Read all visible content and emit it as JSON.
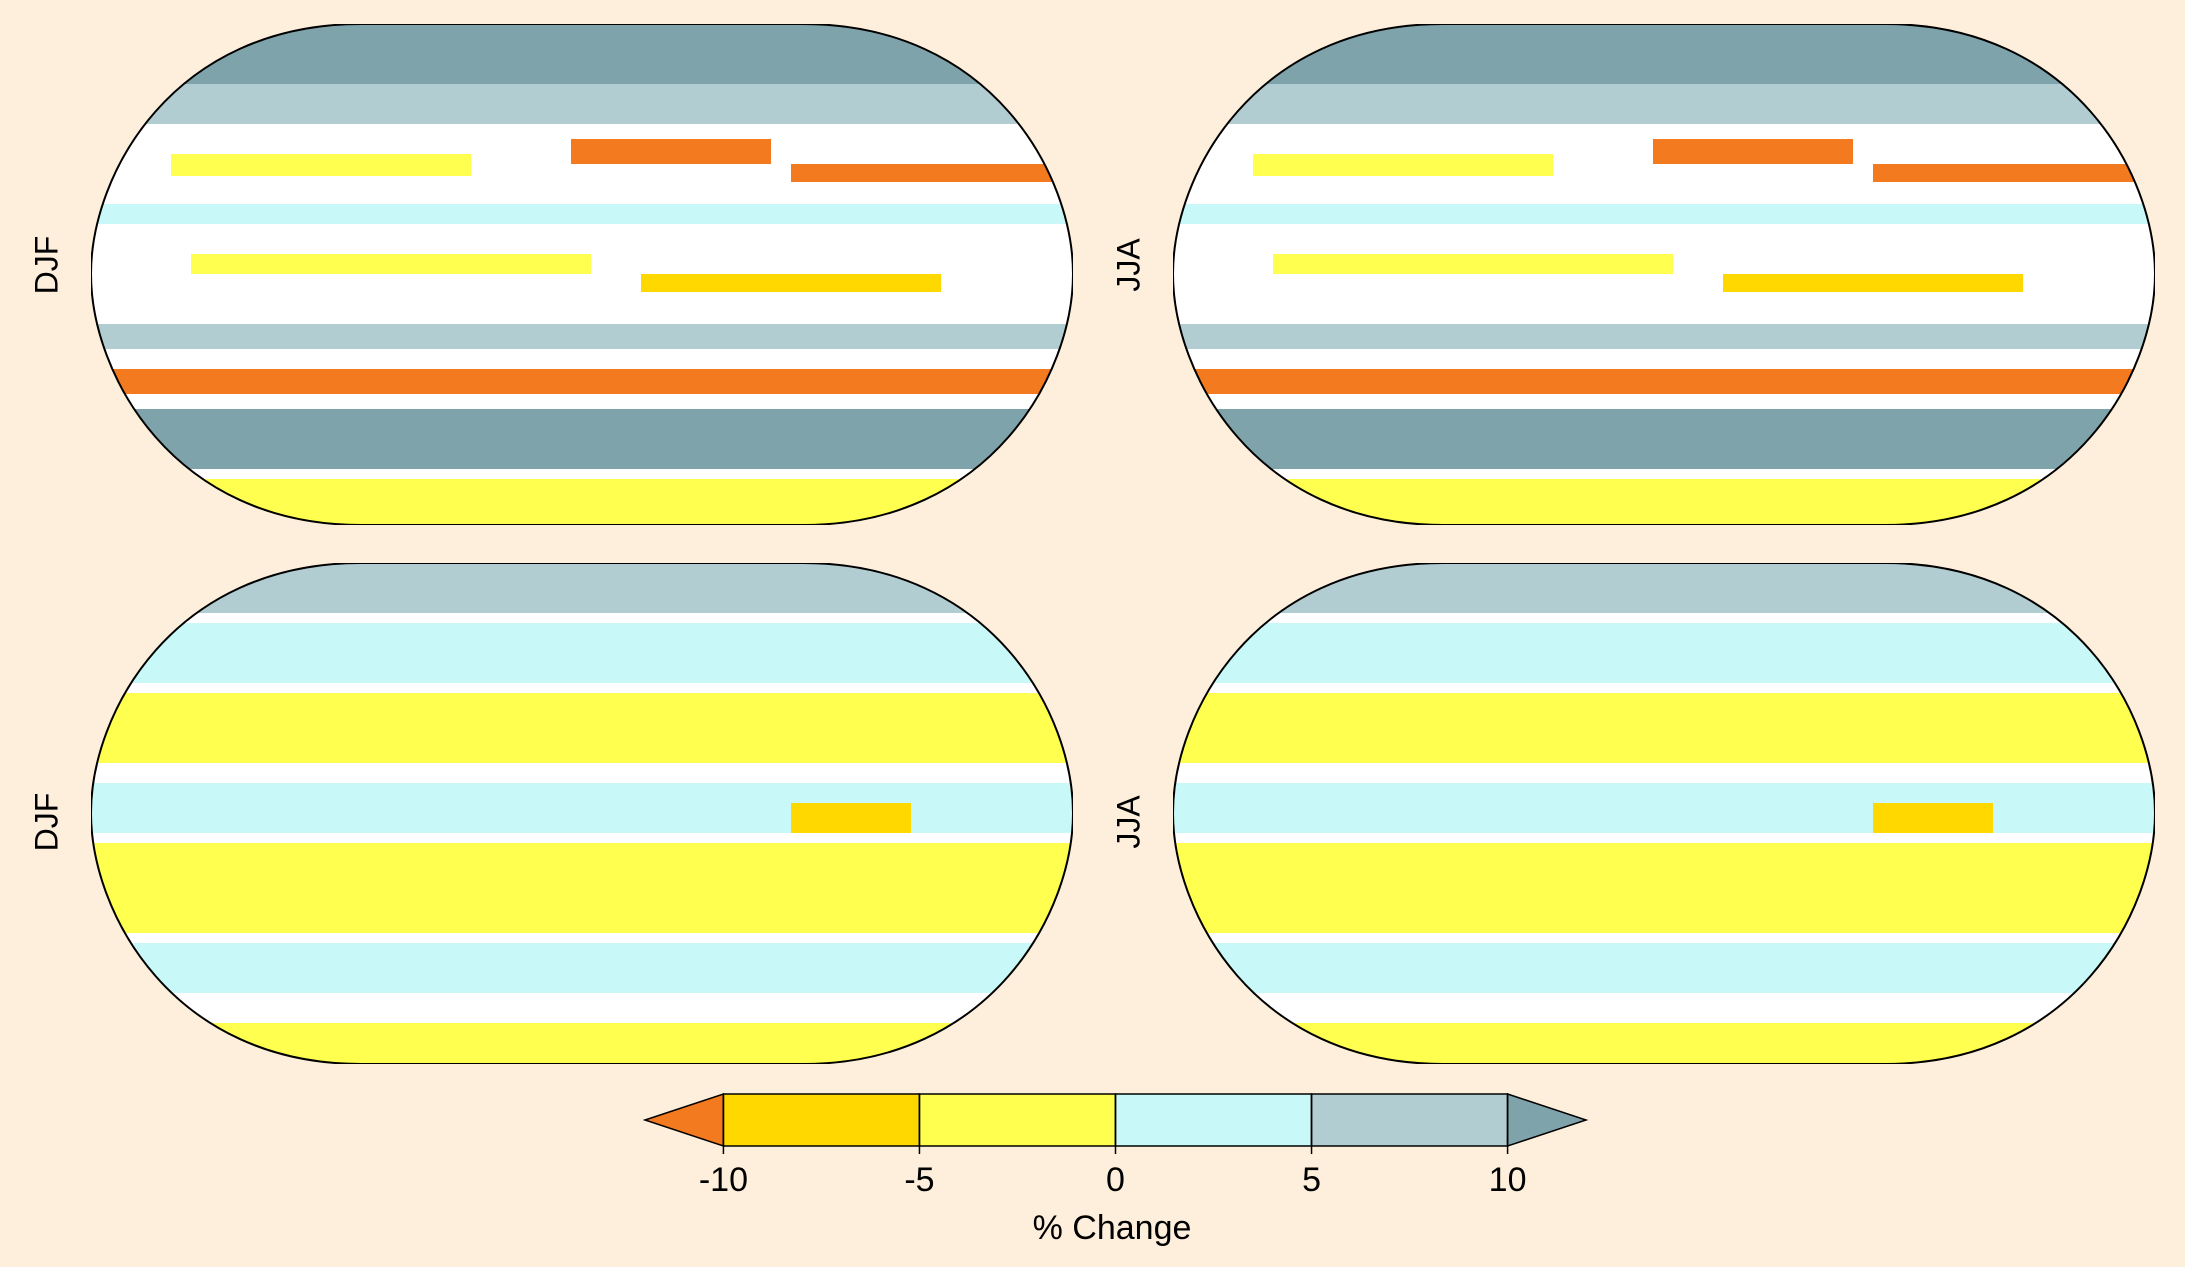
{
  "chart_data": {
    "type": "map",
    "panels": [
      {
        "label": "DJF"
      },
      {
        "label": "JJA"
      },
      {
        "label": "DJF"
      },
      {
        "label": "JJA"
      }
    ],
    "colorbar": {
      "label": "% Change",
      "xlim": [
        -12,
        12
      ],
      "ticks": [
        -10,
        -5,
        0,
        5,
        10
      ],
      "colors": [
        "#f47a20",
        "#ffd800",
        "#ffff50",
        "#c8f8f8",
        "#b2cdd1",
        "#7fa3aa"
      ]
    }
  }
}
